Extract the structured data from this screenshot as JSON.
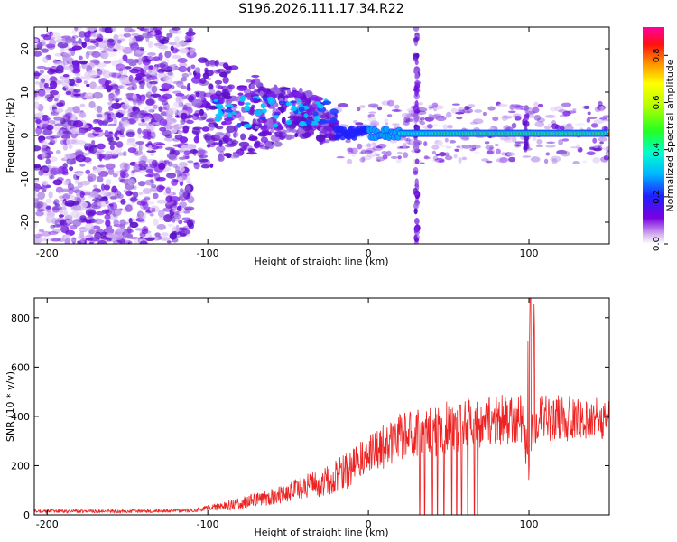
{
  "title": "S196.2026.111.17.34.R22",
  "colors": {
    "snr_line": "#ee2222",
    "spectral_blob": "#6a0dd6",
    "frame": "#000000",
    "background": "#ffffff"
  },
  "chart_data": [
    {
      "type": "heatmap",
      "title": "S196.2026.111.17.34.R22",
      "xlabel": "Height of straight line (km)",
      "ylabel": "Frequency (Hz)",
      "xlim": [
        -208,
        150
      ],
      "ylim": [
        -25,
        25
      ],
      "xticks": [
        -200,
        -100,
        0,
        100
      ],
      "xtick_labels": [
        "-200",
        "-100",
        "0",
        "100"
      ],
      "yticks": [
        -20,
        -10,
        0,
        10,
        20
      ],
      "ytick_labels": [
        "-20",
        "-10",
        "0",
        "10",
        "20"
      ],
      "colorbar": {
        "label": "Normalized spectral amplitude",
        "range": [
          0,
          0.92
        ],
        "ticks": [
          0.0,
          0.2,
          0.4,
          0.6,
          0.8
        ],
        "tick_labels": [
          "0.0",
          "0.2",
          "0.4",
          "0.6",
          "0.8"
        ],
        "colormap": "rainbow (purple-blue-cyan-green-yellow-orange-red-magenta)"
      },
      "features": {
        "noise_region_x": [
          -208,
          -110
        ],
        "ridge_center_freq_hz": 0.5,
        "vertical_streaks_x": [
          30,
          98
        ]
      }
    },
    {
      "type": "line",
      "xlabel": "Height of straight line (km)",
      "ylabel": "SNR (10 * v/v)",
      "xlim": [
        -208,
        150
      ],
      "ylim": [
        0,
        880
      ],
      "xticks": [
        -200,
        -100,
        0,
        100
      ],
      "xtick_labels": [
        "-200",
        "-100",
        "0",
        "100"
      ],
      "yticks": [
        0,
        200,
        400,
        600,
        800
      ],
      "ytick_labels": [
        "0",
        "200",
        "400",
        "600",
        "800"
      ],
      "series": [
        {
          "name": "SNR",
          "color": "#ee2222",
          "trend_x": [
            -208,
            -150,
            -110,
            -90,
            -70,
            -50,
            -30,
            -10,
            0,
            20,
            40,
            60,
            80,
            95,
            100,
            103,
            110,
            130,
            150
          ],
          "trend_y": [
            15,
            15,
            18,
            35,
            60,
            90,
            130,
            190,
            240,
            320,
            340,
            370,
            385,
            390,
            200,
            380,
            390,
            390,
            395
          ],
          "spread_x": [
            -208,
            -110,
            -90,
            -50,
            -10,
            0,
            20,
            50,
            100,
            150
          ],
          "spread_y": [
            12,
            12,
            30,
            70,
            130,
            140,
            160,
            180,
            170,
            140
          ],
          "dropouts_x": [
            32,
            35,
            40,
            43,
            47,
            52,
            55,
            58,
            62,
            66,
            68
          ],
          "spike": {
            "x": 101,
            "y": 880
          }
        }
      ]
    }
  ]
}
